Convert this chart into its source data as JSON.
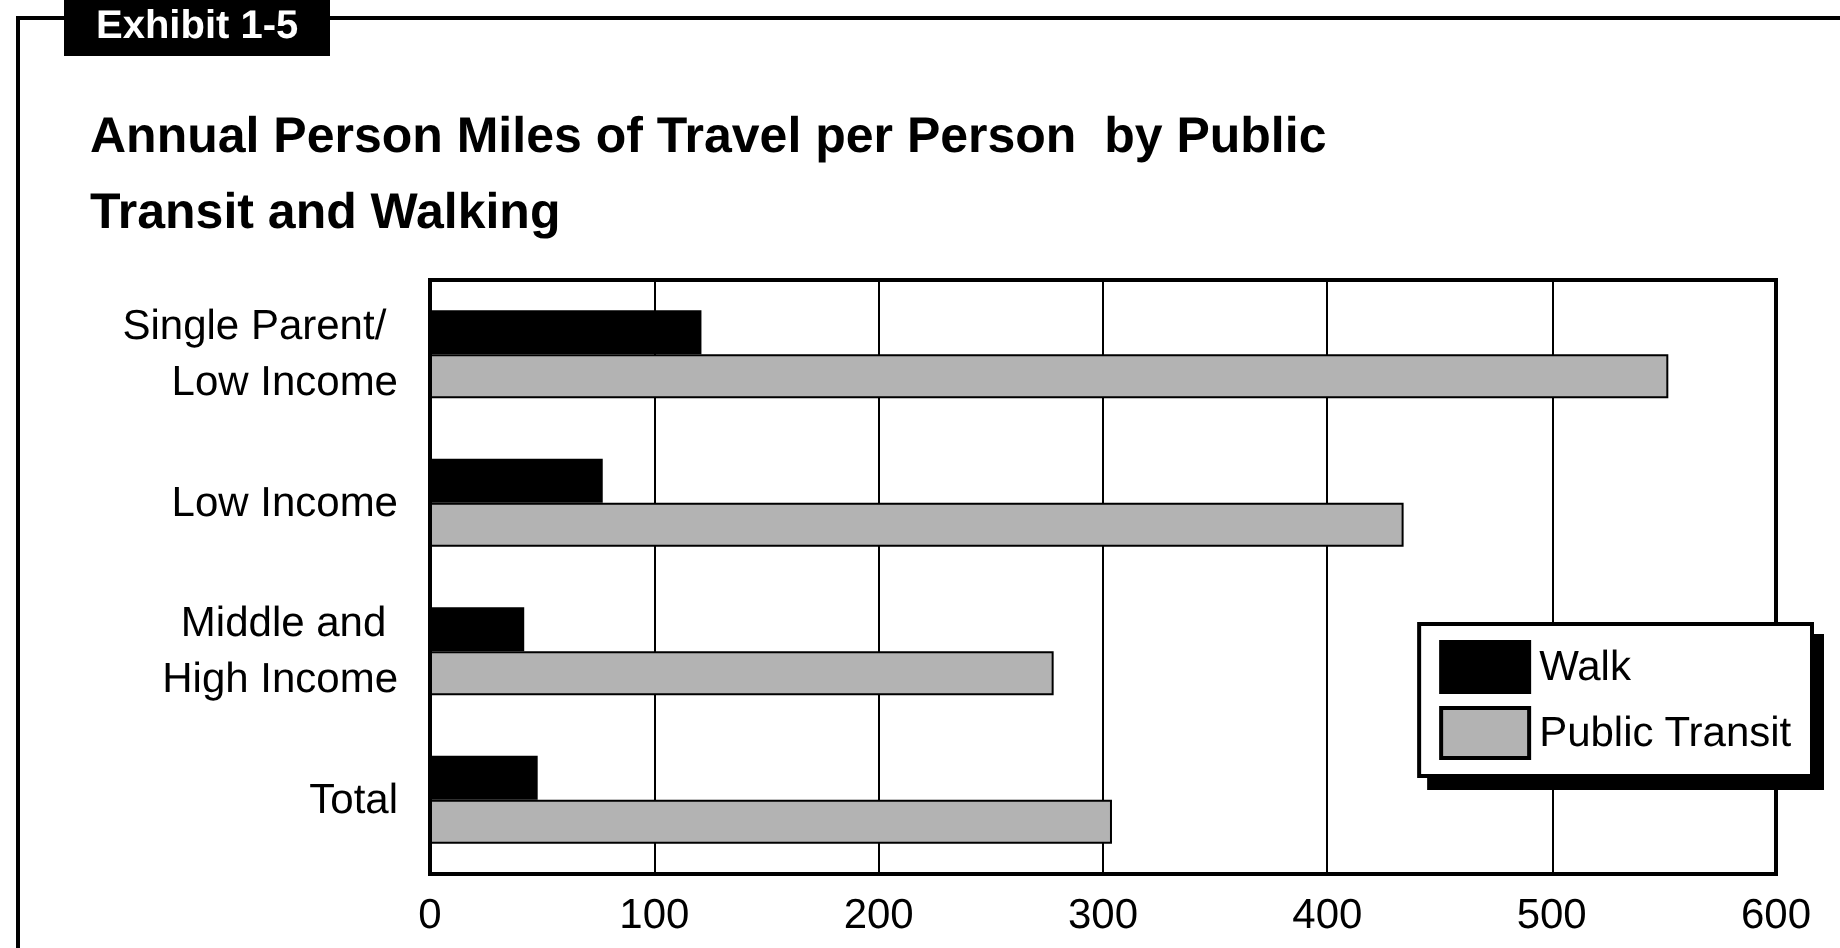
{
  "chart_data": {
    "type": "bar",
    "orientation": "horizontal",
    "title": "Annual Person Miles of Travel per Person  by Public Transit and Walking",
    "annotations": [
      "Exhibit 1-5"
    ],
    "categories": [
      "Single Parent/ Low Income",
      "Low Income",
      "Middle and High Income",
      "Total"
    ],
    "series": [
      {
        "name": "Walk",
        "color": "#000000",
        "values": [
          121,
          77,
          42,
          48
        ]
      },
      {
        "name": "Public Transit",
        "color": "#b3b3b3",
        "values": [
          552,
          434,
          278,
          304
        ]
      }
    ],
    "xlim": [
      0,
      600
    ],
    "xticks": [
      0,
      100,
      200,
      300,
      400,
      500,
      600
    ],
    "grid": "x",
    "legend": "bottom right"
  }
}
